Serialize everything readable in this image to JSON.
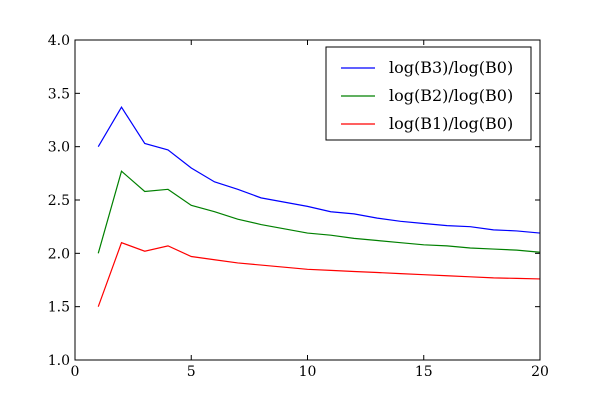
{
  "chart_data": {
    "type": "line",
    "title": "",
    "xlabel": "",
    "ylabel": "",
    "xlim": [
      0,
      20
    ],
    "ylim": [
      1.0,
      4.0
    ],
    "xticks": [
      0,
      5,
      10,
      15,
      20
    ],
    "yticks": [
      "1.0",
      "1.5",
      "2.0",
      "2.5",
      "3.0",
      "3.5",
      "4.0"
    ],
    "grid": false,
    "legend_position": "top-right",
    "x": [
      1,
      2,
      3,
      4,
      5,
      6,
      7,
      8,
      9,
      10,
      11,
      12,
      13,
      14,
      15,
      16,
      17,
      18,
      19,
      20
    ],
    "series": [
      {
        "name": "log(B3)/log(B0)",
        "color": "#0000ff",
        "values": [
          3.0,
          3.37,
          3.03,
          2.97,
          2.8,
          2.67,
          2.6,
          2.52,
          2.48,
          2.44,
          2.39,
          2.37,
          2.33,
          2.3,
          2.28,
          2.26,
          2.25,
          2.22,
          2.21,
          2.19
        ]
      },
      {
        "name": "log(B2)/log(B0)",
        "color": "#008000",
        "values": [
          2.0,
          2.77,
          2.58,
          2.6,
          2.45,
          2.39,
          2.32,
          2.27,
          2.23,
          2.19,
          2.17,
          2.14,
          2.12,
          2.1,
          2.08,
          2.07,
          2.05,
          2.04,
          2.03,
          2.01
        ]
      },
      {
        "name": "log(B1)/log(B0)",
        "color": "#ff0000",
        "values": [
          1.5,
          2.1,
          2.02,
          2.07,
          1.97,
          1.94,
          1.91,
          1.89,
          1.87,
          1.85,
          1.84,
          1.83,
          1.82,
          1.81,
          1.8,
          1.79,
          1.78,
          1.77,
          1.765,
          1.76
        ]
      }
    ]
  }
}
